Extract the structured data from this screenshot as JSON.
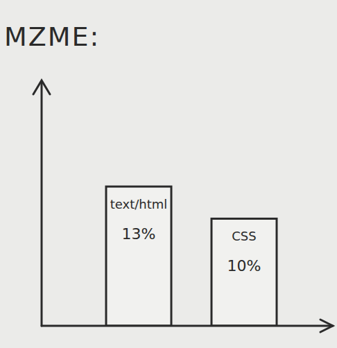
{
  "chart_data": {
    "type": "bar",
    "title": "MZME:",
    "categories": [
      "text/html",
      "CSS"
    ],
    "values": [
      13,
      10
    ],
    "value_labels": [
      "13%",
      "10%"
    ],
    "data_labels": true,
    "color": "#2a2a2a",
    "ylim": [
      0,
      22
    ]
  }
}
